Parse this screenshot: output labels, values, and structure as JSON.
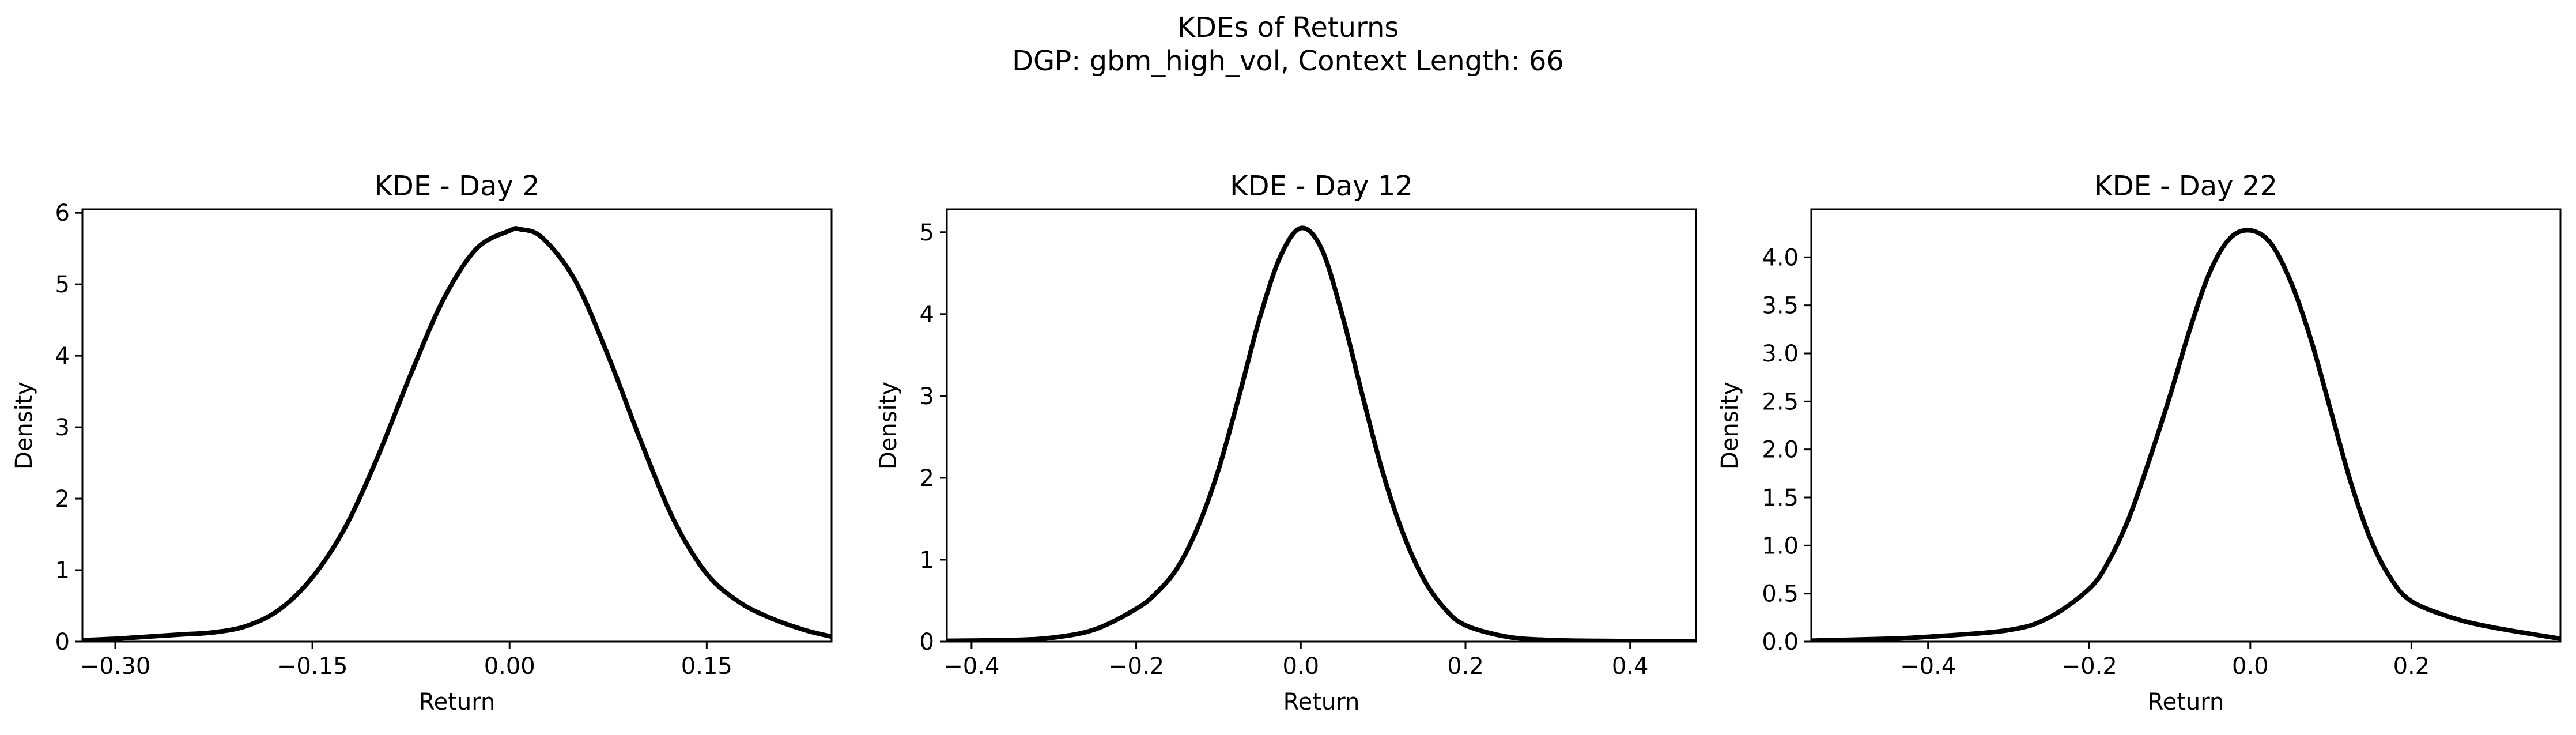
{
  "figure": {
    "title": "KDEs of Returns",
    "subtitle": "DGP: gbm_high_vol, Context Length: 66"
  },
  "chart_data": [
    {
      "type": "line",
      "title": "KDE - Day 2",
      "xlabel": "Return",
      "ylabel": "Density",
      "xlim": [
        -0.325,
        0.245
      ],
      "ylim": [
        0,
        6.05
      ],
      "xticks": [
        -0.3,
        -0.15,
        0.0,
        0.15
      ],
      "xtick_labels": [
        "−0.30",
        "−0.15",
        "0.00",
        "0.15"
      ],
      "yticks": [
        0,
        1,
        2,
        3,
        4,
        5,
        6
      ],
      "ytick_labels": [
        "0",
        "1",
        "2",
        "3",
        "4",
        "5",
        "6"
      ],
      "grid": false,
      "series": [
        {
          "color": "#000000",
          "x": [
            -0.325,
            -0.3,
            -0.275,
            -0.25,
            -0.225,
            -0.2,
            -0.175,
            -0.15,
            -0.125,
            -0.1,
            -0.075,
            -0.05,
            -0.025,
            0.0,
            0.008,
            0.025,
            0.05,
            0.075,
            0.1,
            0.125,
            0.15,
            0.175,
            0.2,
            0.225,
            0.245
          ],
          "y": [
            0.02,
            0.04,
            0.07,
            0.1,
            0.13,
            0.22,
            0.45,
            0.9,
            1.6,
            2.6,
            3.75,
            4.8,
            5.5,
            5.75,
            5.77,
            5.65,
            5.05,
            4.0,
            2.8,
            1.7,
            0.95,
            0.55,
            0.32,
            0.16,
            0.07
          ]
        }
      ]
    },
    {
      "type": "line",
      "title": "KDE - Day 12",
      "xlabel": "Return",
      "ylabel": "Density",
      "xlim": [
        -0.43,
        0.48
      ],
      "ylim": [
        0,
        5.28
      ],
      "xticks": [
        -0.4,
        -0.2,
        0.0,
        0.2,
        0.4
      ],
      "xtick_labels": [
        "−0.4",
        "−0.2",
        "0.0",
        "0.2",
        "0.4"
      ],
      "yticks": [
        0,
        1,
        2,
        3,
        4,
        5
      ],
      "ytick_labels": [
        "0",
        "1",
        "2",
        "3",
        "4",
        "5"
      ],
      "grid": false,
      "series": [
        {
          "color": "#000000",
          "x": [
            -0.43,
            -0.35,
            -0.3,
            -0.25,
            -0.2,
            -0.175,
            -0.15,
            -0.125,
            -0.1,
            -0.075,
            -0.05,
            -0.025,
            0.0,
            0.025,
            0.05,
            0.075,
            0.1,
            0.125,
            0.15,
            0.175,
            0.2,
            0.25,
            0.3,
            0.35,
            0.48
          ],
          "y": [
            0.01,
            0.02,
            0.05,
            0.15,
            0.4,
            0.6,
            0.9,
            1.4,
            2.1,
            3.0,
            3.95,
            4.7,
            5.05,
            4.8,
            4.0,
            3.0,
            2.05,
            1.3,
            0.75,
            0.4,
            0.2,
            0.06,
            0.02,
            0.01,
            0.0
          ]
        }
      ]
    },
    {
      "type": "line",
      "title": "KDE - Day 22",
      "xlabel": "Return",
      "ylabel": "Density",
      "xlim": [
        -0.545,
        0.385
      ],
      "ylim": [
        0,
        4.5
      ],
      "xticks": [
        -0.4,
        -0.2,
        0.0,
        0.2
      ],
      "xtick_labels": [
        "−0.4",
        "−0.2",
        "0.0",
        "0.2"
      ],
      "yticks": [
        0.0,
        0.5,
        1.0,
        1.5,
        2.0,
        2.5,
        3.0,
        3.5,
        4.0
      ],
      "ytick_labels": [
        "0.0",
        "0.5",
        "1.0",
        "1.5",
        "2.0",
        "2.5",
        "3.0",
        "3.5",
        "4.0"
      ],
      "grid": false,
      "series": [
        {
          "color": "#000000",
          "x": [
            -0.545,
            -0.45,
            -0.4,
            -0.3,
            -0.25,
            -0.2,
            -0.175,
            -0.15,
            -0.125,
            -0.1,
            -0.075,
            -0.05,
            -0.025,
            0.0,
            0.025,
            0.05,
            0.075,
            0.1,
            0.125,
            0.15,
            0.175,
            0.2,
            0.25,
            0.3,
            0.385
          ],
          "y": [
            0.01,
            0.03,
            0.05,
            0.12,
            0.25,
            0.55,
            0.85,
            1.3,
            1.9,
            2.55,
            3.25,
            3.85,
            4.2,
            4.28,
            4.15,
            3.75,
            3.15,
            2.4,
            1.65,
            1.05,
            0.65,
            0.42,
            0.25,
            0.15,
            0.03
          ]
        }
      ]
    }
  ]
}
